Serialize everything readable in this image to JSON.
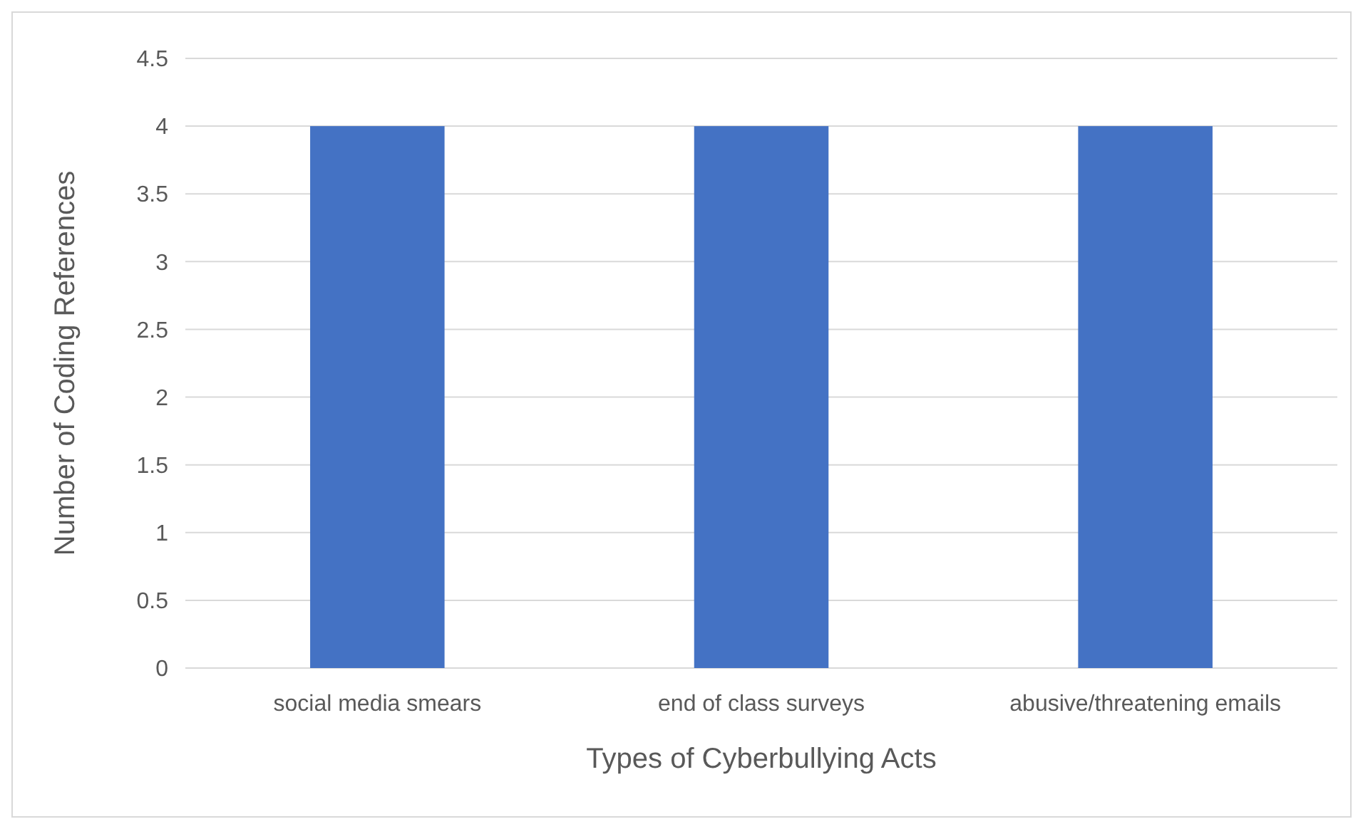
{
  "chart_data": {
    "type": "bar",
    "xlabel": "Types of Cyberbullying Acts",
    "ylabel": "Number of Coding References",
    "categories": [
      "social media smears",
      "end of class surveys",
      "abusive/threatening emails"
    ],
    "values": [
      4,
      4,
      4
    ],
    "color": "#4472c4",
    "ylim": [
      0,
      4.5
    ],
    "yticks": [
      0,
      0.5,
      1,
      1.5,
      2,
      2.5,
      3,
      3.5,
      4,
      4.5
    ],
    "grid": "y"
  }
}
